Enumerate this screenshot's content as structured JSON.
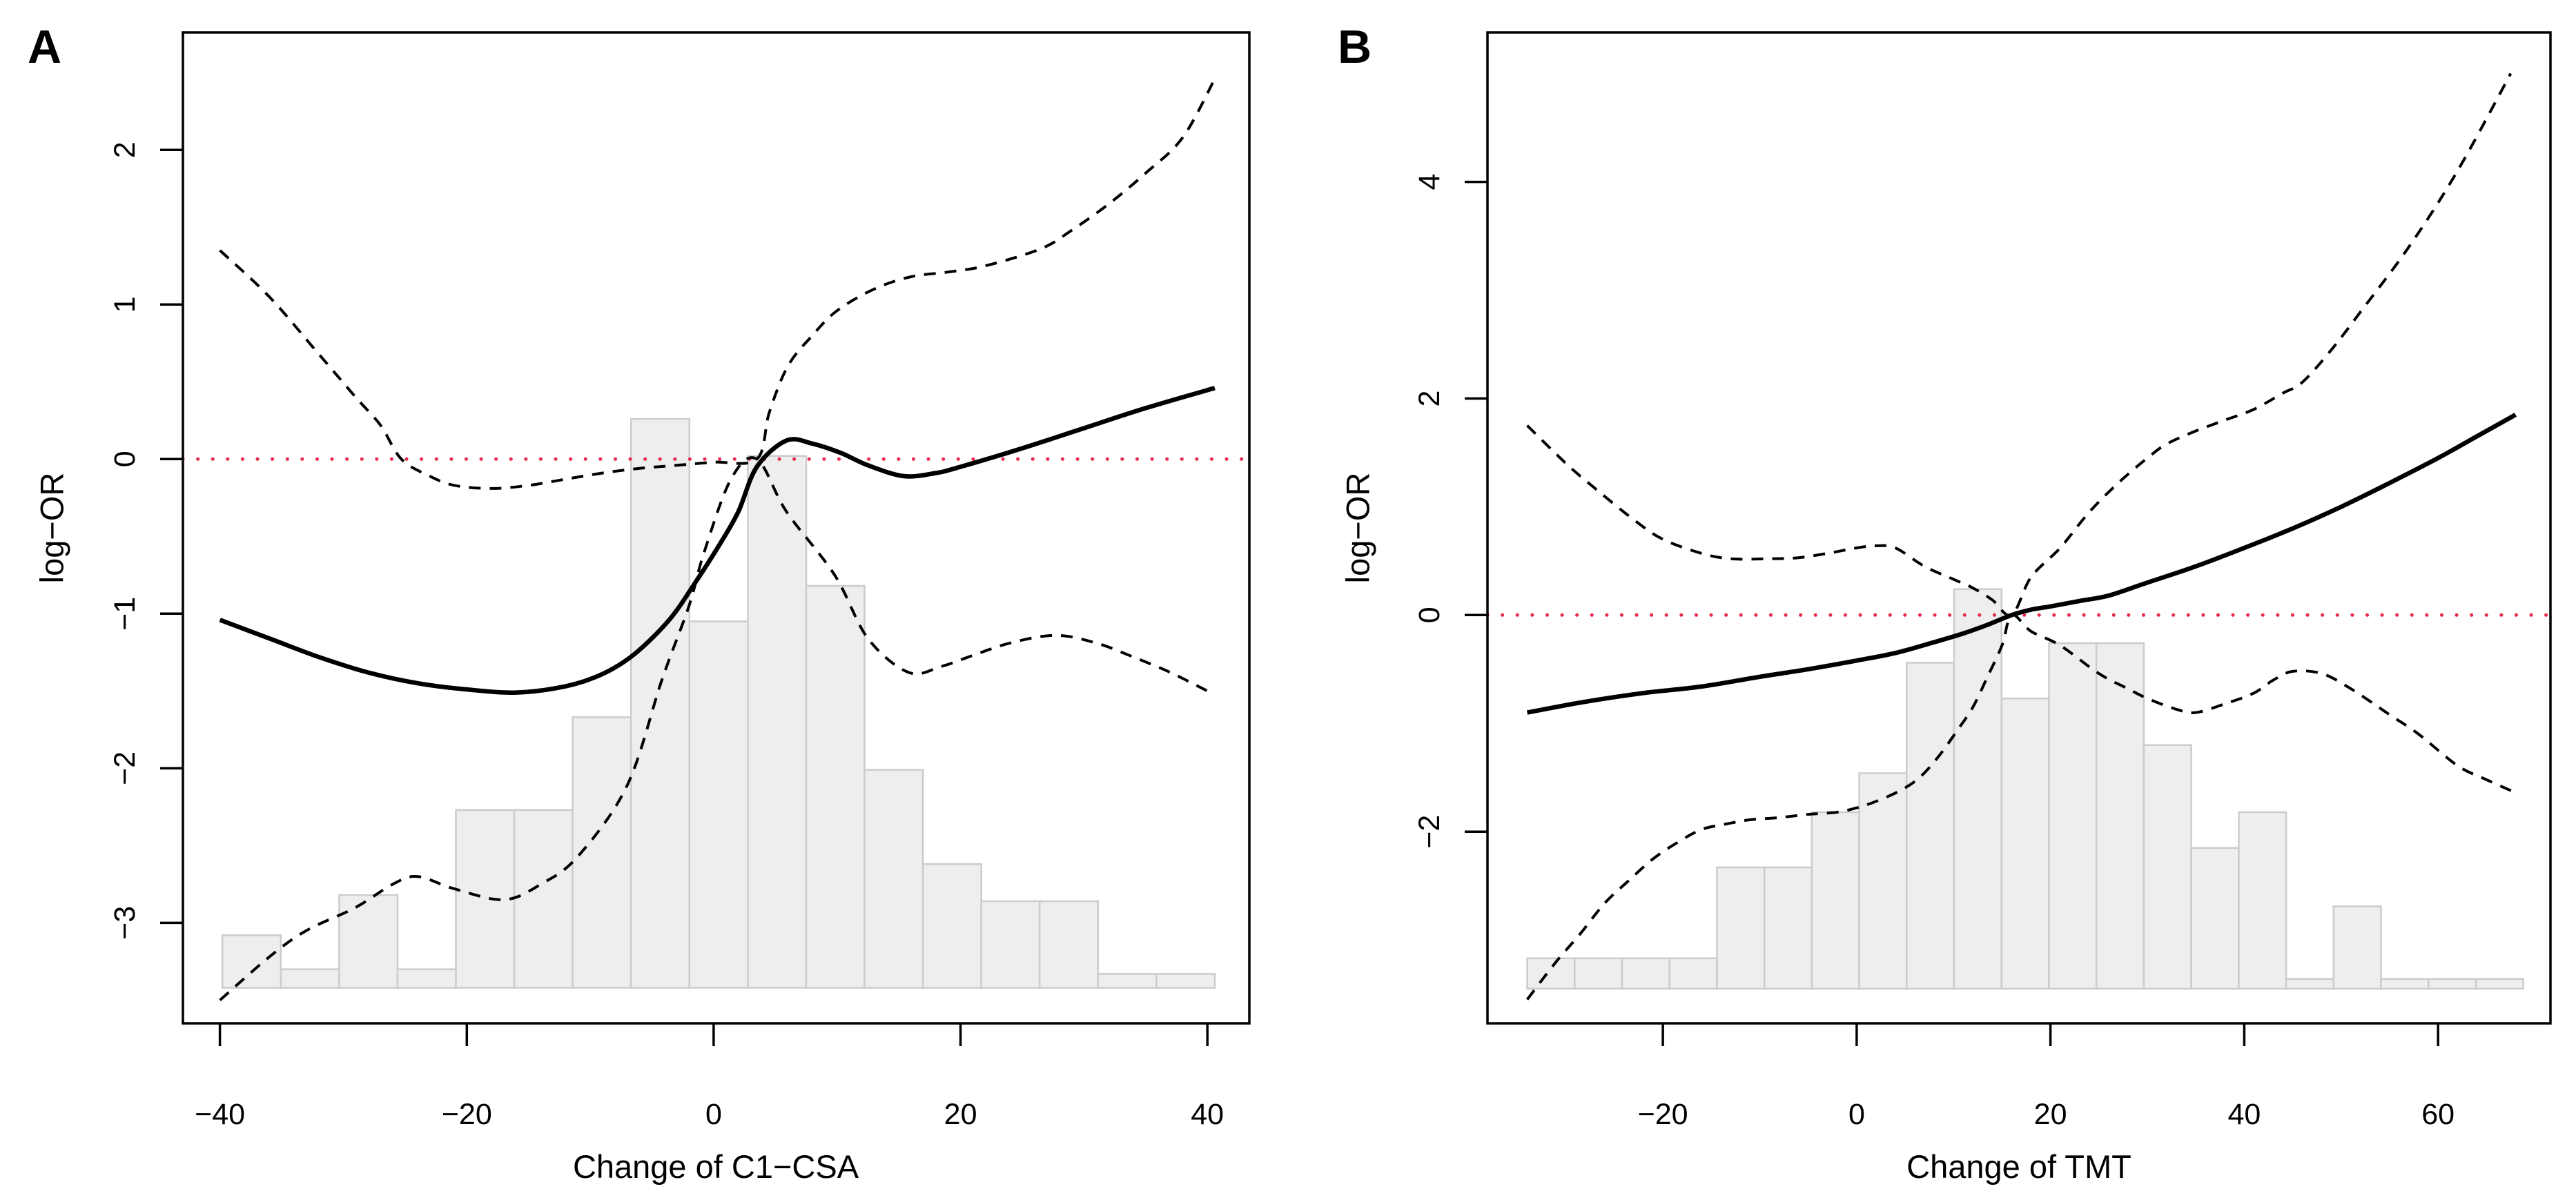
{
  "figure": {
    "background": "#ffffff",
    "colors": {
      "curve": "#000000",
      "ci_curve": "#000000",
      "reference_line": "#e82a4e",
      "hist_fill": "#eeeeee",
      "hist_stroke": "#cccccc",
      "box": "#000000",
      "text": "#000000"
    }
  },
  "chart_data": [
    {
      "type": "line",
      "panel_label": "A",
      "xlabel": "Change of C1−CSA",
      "ylabel": "log−OR",
      "x_ticks": {
        "values": [
          -40,
          -20,
          0,
          20,
          40
        ],
        "labels": [
          "−40",
          "−20",
          "0",
          "20",
          "40"
        ]
      },
      "y_ticks": {
        "values": [
          -3,
          -2,
          -1,
          0,
          1,
          2
        ],
        "labels": [
          "−3",
          "−2",
          "−1",
          "0",
          "1",
          "2"
        ]
      },
      "x_range": [
        -43.0,
        43.4
      ],
      "y_range": [
        -3.65,
        2.76
      ],
      "reference_line_y": 0,
      "legend_position": "none",
      "grid": false,
      "histogram": {
        "x_start": -39.8,
        "x_end": 40.6,
        "baseline": -3.42,
        "tops": [
          -3.08,
          -3.3,
          -2.82,
          -3.3,
          -2.27,
          -2.27,
          -1.67,
          0.26,
          -1.05,
          0.02,
          -0.82,
          -2.01,
          -2.62,
          -2.86,
          -2.86,
          -3.33,
          -3.33
        ]
      },
      "series": [
        {
          "name": "estimate",
          "style": "solid",
          "points": [
            [
              -40,
              -1.04
            ],
            [
              -36,
              -1.16
            ],
            [
              -32,
              -1.28
            ],
            [
              -28,
              -1.38
            ],
            [
              -24,
              -1.45
            ],
            [
              -20,
              -1.49
            ],
            [
              -16,
              -1.51
            ],
            [
              -12,
              -1.47
            ],
            [
              -9,
              -1.39
            ],
            [
              -6.4,
              -1.26
            ],
            [
              -3.6,
              -1.04
            ],
            [
              -1.5,
              -0.8
            ],
            [
              0.5,
              -0.55
            ],
            [
              2,
              -0.34
            ],
            [
              3.5,
              -0.05
            ],
            [
              5.9,
              0.12
            ],
            [
              8,
              0.1
            ],
            [
              10.3,
              0.04
            ],
            [
              12.5,
              -0.04
            ],
            [
              15.4,
              -0.11
            ],
            [
              18,
              -0.09
            ],
            [
              20,
              -0.05
            ],
            [
              25,
              0.07
            ],
            [
              30,
              0.2
            ],
            [
              35,
              0.33
            ],
            [
              40.6,
              0.46
            ]
          ]
        },
        {
          "name": "upper-95ci",
          "style": "dashed",
          "points": [
            [
              -40,
              1.35
            ],
            [
              -36,
              1.05
            ],
            [
              -32,
              0.68
            ],
            [
              -29,
              0.4
            ],
            [
              -27,
              0.22
            ],
            [
              -25.3,
              0.0
            ],
            [
              -23,
              -0.11
            ],
            [
              -21,
              -0.17
            ],
            [
              -18,
              -0.19
            ],
            [
              -15,
              -0.17
            ],
            [
              -12,
              -0.13
            ],
            [
              -9,
              -0.09
            ],
            [
              -6,
              -0.06
            ],
            [
              -3,
              -0.04
            ],
            [
              0,
              -0.02
            ],
            [
              3.5,
              0
            ],
            [
              4.5,
              0.3
            ],
            [
              6,
              0.6
            ],
            [
              8,
              0.8
            ],
            [
              10,
              0.96
            ],
            [
              13,
              1.1
            ],
            [
              16,
              1.18
            ],
            [
              19,
              1.21
            ],
            [
              22,
              1.25
            ],
            [
              26.5,
              1.36
            ],
            [
              29,
              1.48
            ],
            [
              32,
              1.65
            ],
            [
              35,
              1.85
            ],
            [
              38,
              2.08
            ],
            [
              40.6,
              2.46
            ]
          ]
        },
        {
          "name": "lower-95ci",
          "style": "dashed",
          "points": [
            [
              -40,
              -3.5
            ],
            [
              -36,
              -3.22
            ],
            [
              -33,
              -3.05
            ],
            [
              -29,
              -2.9
            ],
            [
              -26,
              -2.75
            ],
            [
              -24,
              -2.7
            ],
            [
              -21,
              -2.78
            ],
            [
              -17,
              -2.85
            ],
            [
              -14,
              -2.75
            ],
            [
              -11,
              -2.57
            ],
            [
              -7,
              -2.11
            ],
            [
              -4.2,
              -1.43
            ],
            [
              -2,
              -0.95
            ],
            [
              -0.8,
              -0.61
            ],
            [
              1.4,
              -0.13
            ],
            [
              3.5,
              0
            ],
            [
              5.9,
              -0.34
            ],
            [
              9.8,
              -0.75
            ],
            [
              12.5,
              -1.16
            ],
            [
              15.8,
              -1.38
            ],
            [
              18.5,
              -1.34
            ],
            [
              21,
              -1.27
            ],
            [
              24,
              -1.19
            ],
            [
              27.7,
              -1.14
            ],
            [
              31,
              -1.19
            ],
            [
              34,
              -1.28
            ],
            [
              37,
              -1.38
            ],
            [
              40,
              -1.5
            ]
          ]
        }
      ]
    },
    {
      "type": "line",
      "panel_label": "B",
      "xlabel": "Change of TMT",
      "ylabel": "log−OR",
      "x_ticks": {
        "values": [
          -20,
          0,
          20,
          40,
          60
        ],
        "labels": [
          "−20",
          "0",
          "20",
          "40",
          "60"
        ]
      },
      "y_ticks": {
        "values": [
          -2,
          0,
          2,
          4
        ],
        "labels": [
          "−2",
          "0",
          "2",
          "4"
        ]
      },
      "x_range": [
        -38.1,
        71.6
      ],
      "y_range": [
        -3.77,
        5.38
      ],
      "reference_line_y": 0,
      "legend_position": "none",
      "grid": false,
      "histogram": {
        "x_start": -34.0,
        "x_end": 68.8,
        "baseline": -3.45,
        "tops": [
          -3.17,
          -3.17,
          -3.17,
          -3.17,
          -2.33,
          -2.33,
          -1.82,
          -1.46,
          -0.44,
          0.24,
          -0.77,
          -0.26,
          -0.26,
          -1.2,
          -2.15,
          -1.82,
          -3.36,
          -2.69,
          -3.36,
          -3.36,
          -3.36
        ]
      },
      "series": [
        {
          "name": "estimate",
          "style": "solid",
          "points": [
            [
              -34,
              -0.9
            ],
            [
              -28,
              -0.8
            ],
            [
              -22,
              -0.72
            ],
            [
              -16,
              -0.66
            ],
            [
              -10,
              -0.57
            ],
            [
              -5,
              -0.5
            ],
            [
              0,
              -0.42
            ],
            [
              4,
              -0.35
            ],
            [
              8,
              -0.25
            ],
            [
              11,
              -0.17
            ],
            [
              13.5,
              -0.09
            ],
            [
              16,
              0
            ],
            [
              18,
              0.05
            ],
            [
              20,
              0.08
            ],
            [
              23,
              0.13
            ],
            [
              26,
              0.18
            ],
            [
              30,
              0.3
            ],
            [
              35,
              0.45
            ],
            [
              40,
              0.62
            ],
            [
              45,
              0.8
            ],
            [
              50,
              1.0
            ],
            [
              55,
              1.22
            ],
            [
              60,
              1.45
            ],
            [
              64,
              1.65
            ],
            [
              68,
              1.85
            ]
          ]
        },
        {
          "name": "upper-95ci",
          "style": "dashed",
          "points": [
            [
              -34,
              1.75
            ],
            [
              -30,
              1.4
            ],
            [
              -27,
              1.17
            ],
            [
              -23,
              0.88
            ],
            [
              -20,
              0.7
            ],
            [
              -16,
              0.57
            ],
            [
              -13,
              0.52
            ],
            [
              -9,
              0.52
            ],
            [
              -6,
              0.53
            ],
            [
              -3,
              0.57
            ],
            [
              0,
              0.62
            ],
            [
              2,
              0.64
            ],
            [
              4,
              0.62
            ],
            [
              7,
              0.45
            ],
            [
              10,
              0.33
            ],
            [
              12,
              0.25
            ],
            [
              14,
              0.14
            ],
            [
              16,
              0
            ],
            [
              18,
              0.35
            ],
            [
              21,
              0.62
            ],
            [
              24,
              0.95
            ],
            [
              27,
              1.22
            ],
            [
              30,
              1.45
            ],
            [
              32,
              1.58
            ],
            [
              35,
              1.7
            ],
            [
              38,
              1.8
            ],
            [
              41,
              1.9
            ],
            [
              44,
              2.05
            ],
            [
              46,
              2.15
            ],
            [
              49,
              2.45
            ],
            [
              52,
              2.8
            ],
            [
              57,
              3.4
            ],
            [
              62,
              4.1
            ],
            [
              67.5,
              5.0
            ]
          ]
        },
        {
          "name": "lower-95ci",
          "style": "dashed",
          "points": [
            [
              -34,
              -3.55
            ],
            [
              -31,
              -3.2
            ],
            [
              -28.5,
              -2.94
            ],
            [
              -26,
              -2.66
            ],
            [
              -23.5,
              -2.45
            ],
            [
              -21,
              -2.25
            ],
            [
              -18.5,
              -2.1
            ],
            [
              -16,
              -1.98
            ],
            [
              -13.5,
              -1.93
            ],
            [
              -11,
              -1.89
            ],
            [
              -8,
              -1.87
            ],
            [
              -5,
              -1.84
            ],
            [
              -2,
              -1.82
            ],
            [
              0,
              -1.78
            ],
            [
              2,
              -1.72
            ],
            [
              4.5,
              -1.62
            ],
            [
              6.5,
              -1.5
            ],
            [
              8.5,
              -1.3
            ],
            [
              10.5,
              -1.05
            ],
            [
              12,
              -0.85
            ],
            [
              13.5,
              -0.57
            ],
            [
              15,
              -0.28
            ],
            [
              16,
              0
            ],
            [
              18,
              -0.15
            ],
            [
              21,
              -0.28
            ],
            [
              25,
              -0.54
            ],
            [
              28,
              -0.68
            ],
            [
              30,
              -0.77
            ],
            [
              33,
              -0.87
            ],
            [
              35,
              -0.9
            ],
            [
              38,
              -0.82
            ],
            [
              41,
              -0.72
            ],
            [
              43,
              -0.6
            ],
            [
              45,
              -0.52
            ],
            [
              48,
              -0.54
            ],
            [
              51,
              -0.68
            ],
            [
              55,
              -0.92
            ],
            [
              58,
              -1.1
            ],
            [
              62,
              -1.39
            ],
            [
              65,
              -1.52
            ],
            [
              68,
              -1.64
            ]
          ]
        }
      ]
    }
  ]
}
